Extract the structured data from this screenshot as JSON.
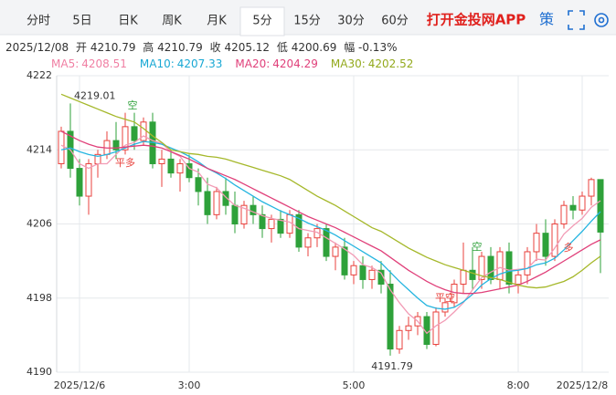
{
  "tabs": [
    "分时",
    "5日",
    "日K",
    "周K",
    "月K",
    "5分",
    "15分",
    "30分",
    "60分"
  ],
  "app_link": "打开金投网APP",
  "strategy": "策",
  "info": {
    "date": "2025/12/08",
    "open_label": "开",
    "open": 4210.79,
    "high_label": "高",
    "high": 4210.79,
    "close_label": "收",
    "close": 4205.12,
    "low_label": "低",
    "low": 4200.69,
    "change_label": "幅",
    "change": "-0.13%"
  },
  "chart_data": {
    "type": "candlestick",
    "categories": [
      null,
      null,
      "2025/12/6",
      null,
      null,
      null,
      null,
      null,
      null,
      null,
      null,
      null,
      null,
      null,
      "3:00",
      null,
      null,
      null,
      null,
      null,
      null,
      null,
      null,
      null,
      null,
      null,
      null,
      null,
      null,
      null,
      null,
      null,
      "5:00",
      null,
      null,
      null,
      null,
      null,
      null,
      null,
      null,
      null,
      null,
      null,
      null,
      null,
      null,
      null,
      null,
      null,
      "8:00",
      null,
      null,
      null,
      null,
      null,
      null,
      "2025/12/8",
      null,
      null
    ],
    "open": [
      4212.5,
      4216,
      4212,
      4209,
      4212.5,
      4213.5,
      4215,
      4214,
      4216.5,
      4215,
      4217,
      4212.5,
      4213,
      4211.5,
      4212.5,
      4211,
      4209.5,
      4207,
      4209.5,
      4208,
      4206,
      4208,
      4207,
      4205.5,
      4206.5,
      4205,
      4207,
      4203.5,
      4204.5,
      4205.5,
      4202.5,
      4203.5,
      4200.5,
      4201.5,
      4200,
      4201,
      4199.5,
      4192.5,
      4194.5,
      4195,
      4196,
      4193,
      4196.5,
      4197.5,
      4199.5,
      4201,
      4200,
      4202.5,
      4200,
      4203,
      4199.5,
      4200.5,
      4203,
      4205,
      4202.5,
      4206,
      4208,
      4207.5,
      4209,
      4210.79
    ],
    "high": [
      4216.5,
      4219.01,
      4213,
      4213,
      4214,
      4216,
      4217,
      4218,
      4218,
      4217.5,
      4218,
      4214,
      4214,
      4213,
      4213.5,
      4212,
      4211,
      4210,
      4211,
      4209.5,
      4208.5,
      4209,
      4208,
      4207,
      4207.5,
      4207.5,
      4207.5,
      4205,
      4206,
      4206,
      4204,
      4204.5,
      4202,
      4202.5,
      4201.5,
      4202,
      4201,
      4195,
      4196,
      4196.5,
      4196.5,
      4197,
      4198,
      4200,
      4204,
      4203.5,
      4203,
      4203.5,
      4203.5,
      4204,
      4201,
      4203.5,
      4206,
      4206.5,
      4206.5,
      4208.5,
      4209,
      4209.5,
      4211,
      4210.79
    ],
    "low": [
      4212,
      4211,
      4208,
      4207,
      4211,
      4213,
      4213,
      4213.5,
      4214,
      4214.5,
      4212,
      4210,
      4211,
      4209.5,
      4210.5,
      4208,
      4206,
      4206.5,
      4207,
      4205,
      4205.5,
      4206,
      4204.5,
      4204,
      4204.5,
      4204.5,
      4203,
      4202.5,
      4203.5,
      4202,
      4201,
      4200,
      4199.5,
      4199,
      4199,
      4198.5,
      4191.79,
      4192,
      4193.5,
      4194,
      4192.5,
      4192.8,
      4196,
      4197,
      4198.5,
      4199,
      4199,
      4199.5,
      4199,
      4198.5,
      4198.5,
      4199.5,
      4202,
      4201.5,
      4202,
      4205.5,
      4206.5,
      4207,
      4208,
      4200.69
    ],
    "close": [
      4216,
      4212,
      4209,
      4212.5,
      4213.5,
      4215,
      4214,
      4216.5,
      4215,
      4217,
      4212.5,
      4213,
      4211.5,
      4212.5,
      4211,
      4209.5,
      4207,
      4209.5,
      4208,
      4206,
      4208,
      4207,
      4205.5,
      4206.5,
      4205,
      4207,
      4203.5,
      4204.5,
      4205.5,
      4202.5,
      4203.5,
      4200.5,
      4201.5,
      4200,
      4201,
      4199.5,
      4192.5,
      4194.5,
      4195,
      4196,
      4193,
      4196.5,
      4197.5,
      4199.5,
      4201,
      4200,
      4202.5,
      4200,
      4203,
      4199.5,
      4200.5,
      4203,
      4205,
      4202.5,
      4206,
      4208,
      4207.5,
      4209,
      4210.79,
      4205.12
    ],
    "up_color": "#e8413c",
    "down_color": "#2ea13a",
    "series": [
      {
        "name": "MA5:",
        "color": "#f29bb5",
        "text_color": "#f07fa3",
        "values": [
          4214.5,
          4214,
          4212.5,
          4212,
          4212.5,
          4212.5,
          4213.5,
          4214.5,
          4214.8,
          4215.5,
          4215,
          4214.7,
          4213.8,
          4213.3,
          4212,
          4211.6,
          4210.3,
          4209.9,
          4208.9,
          4208,
          4207.7,
          4207.3,
          4206.9,
          4206.6,
          4206.4,
          4206.2,
          4205.5,
          4205.3,
          4205.1,
          4204.5,
          4203.9,
          4203.3,
          4202.6,
          4201.6,
          4201.3,
          4200.7,
          4198.9,
          4197.5,
          4196.3,
          4195.5,
          4194.2,
          4195,
          4195.6,
          4196.5,
          4197.5,
          4198.9,
          4200.2,
          4200.8,
          4201.3,
          4201,
          4201.1,
          4201.2,
          4202.2,
          4202.1,
          4203.4,
          4204.9,
          4205.8,
          4206.6,
          4207.8,
          4208.51
        ]
      },
      {
        "name": "MA10:",
        "color": "#25b5e0",
        "text_color": "#18a8d4",
        "values": [
          4214,
          4214.2,
          4213.8,
          4213.5,
          4213.3,
          4213.5,
          4213.8,
          4214.2,
          4214.6,
          4214.9,
          4214.8,
          4214.6,
          4214.2,
          4213.8,
          4213.3,
          4212.7,
          4212,
          4211.5,
          4210.9,
          4210.2,
          4209.6,
          4209,
          4208.4,
          4207.9,
          4207.4,
          4207,
          4206.6,
          4206.1,
          4205.7,
          4205.3,
          4204.8,
          4204.2,
          4203.6,
          4203,
          4202.4,
          4201.8,
          4200.8,
          4199.8,
          4198.9,
          4198,
          4197.2,
          4196.9,
          4196.8,
          4197,
          4197.6,
          4198.4,
          4199.4,
          4200.1,
          4200.6,
          4200.9,
          4201,
          4201.2,
          4201.6,
          4201.8,
          4202.3,
          4203.2,
          4204.2,
          4205.2,
          4206.3,
          4207.33
        ]
      },
      {
        "name": "MA20:",
        "color": "#e0407a",
        "text_color": "#e0407a",
        "values": [
          4216,
          4215.5,
          4215,
          4214.6,
          4214.3,
          4214.2,
          4214.2,
          4214.3,
          4214.4,
          4214.5,
          4214.4,
          4214.2,
          4213.8,
          4213.4,
          4213,
          4212.5,
          4212,
          4211.6,
          4211.2,
          4210.8,
          4210.3,
          4209.8,
          4209.3,
          4208.8,
          4208.3,
          4207.8,
          4207.3,
          4206.8,
          4206.4,
          4206,
          4205.6,
          4205.1,
          4204.6,
          4204.1,
          4203.6,
          4203.1,
          4202.4,
          4201.7,
          4201,
          4200.4,
          4199.8,
          4199.3,
          4198.9,
          4198.6,
          4198.5,
          4198.5,
          4198.6,
          4198.8,
          4199,
          4199.2,
          4199.4,
          4199.8,
          4200.3,
          4200.8,
          4201.4,
          4202,
          4202.6,
          4203.2,
          4203.8,
          4204.29
        ]
      },
      {
        "name": "MA30:",
        "color": "#a5b82a",
        "text_color": "#93a91c",
        "values": [
          4220,
          4219.6,
          4219.2,
          4218.8,
          4218.4,
          4218,
          4217.6,
          4217.3,
          4217,
          4216.3,
          4215.5,
          4214.8,
          4214,
          4213.8,
          4213.6,
          4213.5,
          4213.3,
          4213.2,
          4213,
          4212.7,
          4212.4,
          4212.1,
          4211.8,
          4211.5,
          4211.2,
          4210.8,
          4210.2,
          4209.6,
          4209,
          4208.5,
          4208,
          4207.4,
          4206.8,
          4206.2,
          4205.6,
          4205.2,
          4204.6,
          4204,
          4203.4,
          4202.9,
          4202.4,
          4202,
          4201.6,
          4201.3,
          4201,
          4200.7,
          4200.4,
          4200.2,
          4200,
          4199.7,
          4199.4,
          4199.2,
          4199.1,
          4199.2,
          4199.5,
          4199.8,
          4200.3,
          4201,
          4201.8,
          4202.52
        ]
      }
    ],
    "ylim": [
      4190,
      4222
    ],
    "yticks": [
      4190,
      4198,
      4206,
      4214,
      4222
    ],
    "grid": true,
    "signals": [
      "空",
      "平多",
      "空",
      "平空",
      "多"
    ]
  }
}
